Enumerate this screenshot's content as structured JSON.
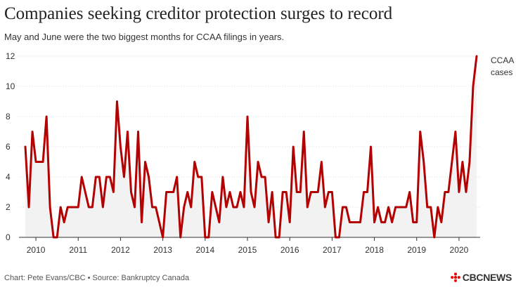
{
  "header": {
    "title": "Companies seeking creditor protection surges to record",
    "subtitle": "May and June were the two biggest months for CCAA filings in years."
  },
  "footer": {
    "credit": "Chart: Pete Evans/CBC • Source: Bankruptcy Canada",
    "brand": "CBCNEWS"
  },
  "colors": {
    "line": "#b30000",
    "area": "#f2f2f2",
    "grid": "#dcdcdc",
    "axis": "#333333",
    "brand_red": "#e60505"
  },
  "chart_data": {
    "type": "line",
    "title": "Companies seeking creditor protection surges to record",
    "subtitle": "May and June were the two biggest months for CCAA filings in years.",
    "xlabel": "",
    "ylabel": "",
    "ylim": [
      0,
      12
    ],
    "yticks": [
      0,
      2,
      4,
      6,
      8,
      10,
      12
    ],
    "xlim": [
      2009.6,
      2020.5
    ],
    "xticks": [
      2010,
      2011,
      2012,
      2013,
      2014,
      2015,
      2016,
      2017,
      2018,
      2019,
      2020
    ],
    "xtick_labels": [
      "2010",
      "2011",
      "2012",
      "2013",
      "2014",
      "2015",
      "2016",
      "2017",
      "2018",
      "2019",
      "2020"
    ],
    "grid": true,
    "legend": "top-right",
    "series": [
      {
        "name": "CCAA cases",
        "label_lines": [
          "CCAA",
          "cases"
        ],
        "x_start": 2009.75,
        "x_step": 0.0833333,
        "values": [
          6,
          2,
          7,
          5,
          5,
          5,
          8,
          2,
          0,
          0,
          2,
          1,
          2,
          2,
          2,
          2,
          4,
          3,
          2,
          2,
          4,
          4,
          2,
          4,
          4,
          3,
          9,
          6,
          4,
          7,
          3,
          2,
          7,
          1,
          5,
          4,
          2,
          2,
          1,
          0,
          3,
          3,
          3,
          4,
          0,
          2,
          3,
          2,
          5,
          4,
          4,
          0,
          0,
          3,
          2,
          1,
          4,
          2,
          3,
          2,
          2,
          3,
          2,
          8,
          3,
          2,
          5,
          4,
          4,
          1,
          3,
          0,
          0,
          3,
          3,
          1,
          6,
          3,
          3,
          7,
          2,
          3,
          3,
          3,
          5,
          2,
          3,
          3,
          0,
          0,
          2,
          2,
          1,
          1,
          1,
          1,
          3,
          3,
          6,
          1,
          2,
          1,
          1,
          2,
          1,
          2,
          2,
          2,
          2,
          3,
          1,
          1,
          7,
          5,
          2,
          2,
          0,
          2,
          1,
          3,
          3,
          5,
          7,
          3,
          5,
          3,
          5,
          10,
          12
        ]
      }
    ]
  }
}
